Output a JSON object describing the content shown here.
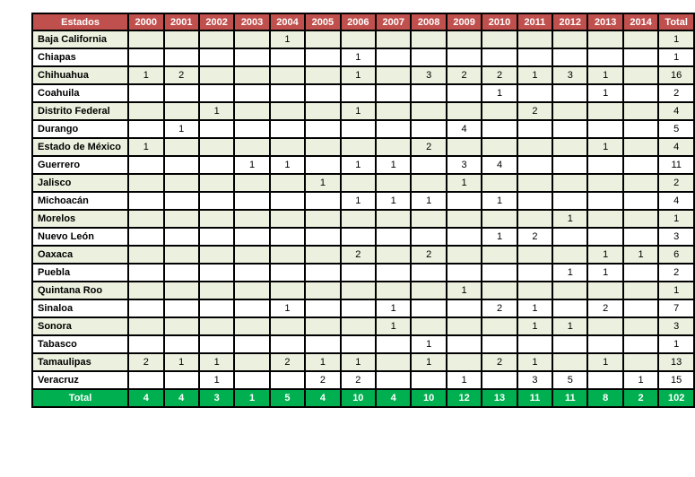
{
  "colors": {
    "header_bg": "#c0504d",
    "header_text": "#ffffff",
    "row_alt_green": "#ebf1de",
    "row_white": "#ffffff",
    "total_row_bg": "#00b050",
    "total_row_text": "#ffffff",
    "grid_border": "#000000",
    "body_text": "#000000"
  },
  "chart_data": {
    "type": "table",
    "columns": [
      "Estados",
      "2000",
      "2001",
      "2002",
      "2003",
      "2004",
      "2005",
      "2006",
      "2007",
      "2008",
      "2009",
      "2010",
      "2011",
      "2012",
      "2013",
      "2014",
      "Total"
    ],
    "rows": [
      {
        "state": "Baja California",
        "values": [
          "",
          "",
          "",
          "",
          "1",
          "",
          "",
          "",
          "",
          "",
          "",
          "",
          "",
          "",
          ""
        ],
        "total": "1"
      },
      {
        "state": "Chiapas",
        "values": [
          "",
          "",
          "",
          "",
          "",
          "",
          "1",
          "",
          "",
          "",
          "",
          "",
          "",
          "",
          ""
        ],
        "total": "1"
      },
      {
        "state": "Chihuahua",
        "values": [
          "1",
          "2",
          "",
          "",
          "",
          "",
          "1",
          "",
          "3",
          "2",
          "2",
          "1",
          "3",
          "1",
          ""
        ],
        "total": "16"
      },
      {
        "state": "Coahuila",
        "values": [
          "",
          "",
          "",
          "",
          "",
          "",
          "",
          "",
          "",
          "",
          "1",
          "",
          "",
          "1",
          ""
        ],
        "total": "2"
      },
      {
        "state": "Distrito Federal",
        "values": [
          "",
          "",
          "1",
          "",
          "",
          "",
          "1",
          "",
          "",
          "",
          "",
          "2",
          "",
          "",
          ""
        ],
        "total": "4"
      },
      {
        "state": "Durango",
        "values": [
          "",
          "1",
          "",
          "",
          "",
          "",
          "",
          "",
          "",
          "4",
          "",
          "",
          "",
          "",
          ""
        ],
        "total": "5"
      },
      {
        "state": "Estado de México",
        "values": [
          "1",
          "",
          "",
          "",
          "",
          "",
          "",
          "",
          "2",
          "",
          "",
          "",
          "",
          "1",
          ""
        ],
        "total": "4"
      },
      {
        "state": "Guerrero",
        "values": [
          "",
          "",
          "",
          "1",
          "1",
          "",
          "1",
          "1",
          "",
          "3",
          "4",
          "",
          "",
          "",
          ""
        ],
        "total": "11"
      },
      {
        "state": "Jalisco",
        "values": [
          "",
          "",
          "",
          "",
          "",
          "1",
          "",
          "",
          "",
          "1",
          "",
          "",
          "",
          "",
          ""
        ],
        "total": "2"
      },
      {
        "state": "Michoacán",
        "values": [
          "",
          "",
          "",
          "",
          "",
          "",
          "1",
          "1",
          "1",
          "",
          "1",
          "",
          "",
          "",
          ""
        ],
        "total": "4"
      },
      {
        "state": "Morelos",
        "values": [
          "",
          "",
          "",
          "",
          "",
          "",
          "",
          "",
          "",
          "",
          "",
          "",
          "1",
          "",
          ""
        ],
        "total": "1"
      },
      {
        "state": "Nuevo León",
        "values": [
          "",
          "",
          "",
          "",
          "",
          "",
          "",
          "",
          "",
          "",
          "1",
          "2",
          "",
          "",
          ""
        ],
        "total": "3"
      },
      {
        "state": "Oaxaca",
        "values": [
          "",
          "",
          "",
          "",
          "",
          "",
          "2",
          "",
          "2",
          "",
          "",
          "",
          "",
          "1",
          "1"
        ],
        "total": "6"
      },
      {
        "state": "Puebla",
        "values": [
          "",
          "",
          "",
          "",
          "",
          "",
          "",
          "",
          "",
          "",
          "",
          "",
          "1",
          "1",
          ""
        ],
        "total": "2"
      },
      {
        "state": "Quintana Roo",
        "values": [
          "",
          "",
          "",
          "",
          "",
          "",
          "",
          "",
          "",
          "1",
          "",
          "",
          "",
          "",
          ""
        ],
        "total": "1"
      },
      {
        "state": "Sinaloa",
        "values": [
          "",
          "",
          "",
          "",
          "1",
          "",
          "",
          "1",
          "",
          "",
          "2",
          "1",
          "",
          "2",
          ""
        ],
        "total": "7"
      },
      {
        "state": "Sonora",
        "values": [
          "",
          "",
          "",
          "",
          "",
          "",
          "",
          "1",
          "",
          "",
          "",
          "1",
          "1",
          "",
          ""
        ],
        "total": "3"
      },
      {
        "state": "Tabasco",
        "values": [
          "",
          "",
          "",
          "",
          "",
          "",
          "",
          "",
          "1",
          "",
          "",
          "",
          "",
          "",
          ""
        ],
        "total": "1"
      },
      {
        "state": "Tamaulipas",
        "values": [
          "2",
          "1",
          "1",
          "",
          "2",
          "1",
          "1",
          "",
          "1",
          "",
          "2",
          "1",
          "",
          "1",
          ""
        ],
        "total": "13"
      },
      {
        "state": "Veracruz",
        "values": [
          "",
          "",
          "1",
          "",
          "",
          "2",
          "2",
          "",
          "",
          "1",
          "",
          "3",
          "5",
          "",
          "1"
        ],
        "total": "15"
      }
    ],
    "total_row": {
      "label": "Total",
      "values": [
        "4",
        "4",
        "3",
        "1",
        "5",
        "4",
        "10",
        "4",
        "10",
        "12",
        "13",
        "11",
        "11",
        "8",
        "2"
      ],
      "total": "102"
    }
  }
}
